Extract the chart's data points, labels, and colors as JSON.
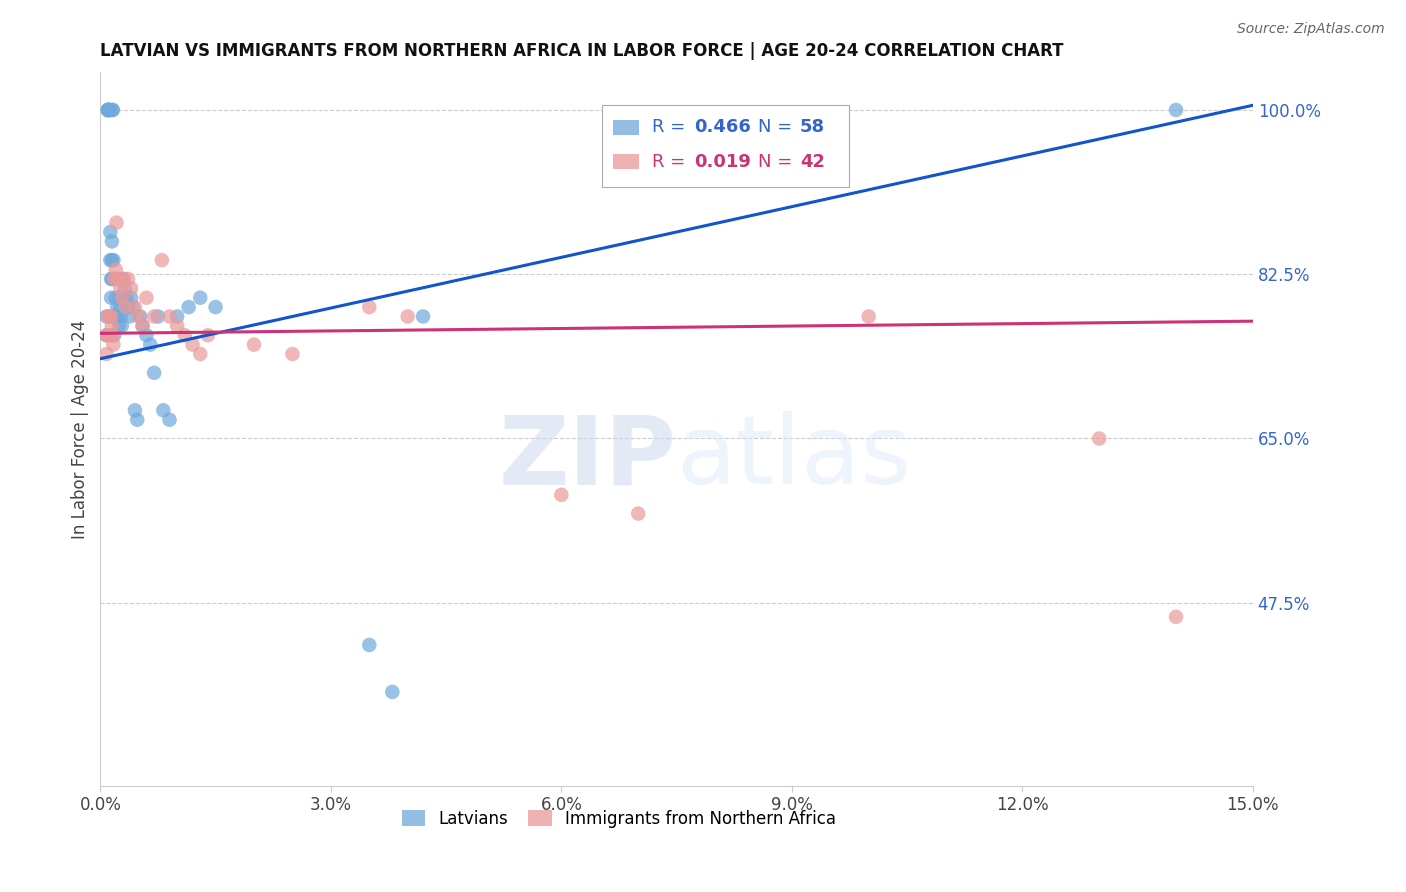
{
  "title": "LATVIAN VS IMMIGRANTS FROM NORTHERN AFRICA IN LABOR FORCE | AGE 20-24 CORRELATION CHART",
  "source": "Source: ZipAtlas.com",
  "ylabel": "In Labor Force | Age 20-24",
  "xlim": [
    0.0,
    0.15
  ],
  "ylim": [
    0.28,
    1.04
  ],
  "xticks": [
    0.0,
    0.03,
    0.06,
    0.09,
    0.12,
    0.15
  ],
  "xticklabels": [
    "0.0%",
    "3.0%",
    "6.0%",
    "9.0%",
    "12.0%",
    "15.0%"
  ],
  "yticks_right": [
    1.0,
    0.825,
    0.65,
    0.475
  ],
  "yticklabels_right": [
    "100.0%",
    "82.5%",
    "65.0%",
    "47.5%"
  ],
  "blue_R": 0.466,
  "blue_N": 58,
  "pink_R": 0.019,
  "pink_N": 42,
  "blue_color": "#6fa8dc",
  "pink_color": "#ea9999",
  "blue_line_color": "#1155cc",
  "pink_line_color": "#cc3377",
  "legend_label_blue": "Latvians",
  "legend_label_pink": "Immigrants from Northern Africa",
  "blue_line_x0": 0.0,
  "blue_line_y0": 0.735,
  "blue_line_x1": 0.15,
  "blue_line_y1": 1.005,
  "pink_line_x0": 0.0,
  "pink_line_y0": 0.762,
  "pink_line_x1": 0.15,
  "pink_line_y1": 0.775,
  "blue_x": [
    0.0008,
    0.0008,
    0.001,
    0.001,
    0.001,
    0.001,
    0.001,
    0.0012,
    0.0012,
    0.0013,
    0.0013,
    0.0014,
    0.0014,
    0.0015,
    0.0015,
    0.0015,
    0.0016,
    0.0016,
    0.0017,
    0.0017,
    0.0018,
    0.0018,
    0.0019,
    0.002,
    0.002,
    0.0021,
    0.0022,
    0.0023,
    0.0024,
    0.0025,
    0.0026,
    0.0027,
    0.0028,
    0.003,
    0.0032,
    0.0034,
    0.0036,
    0.0038,
    0.004,
    0.0042,
    0.0045,
    0.0048,
    0.0052,
    0.0055,
    0.006,
    0.0065,
    0.007,
    0.0075,
    0.0082,
    0.009,
    0.01,
    0.0115,
    0.013,
    0.015,
    0.035,
    0.038,
    0.042,
    0.14
  ],
  "blue_y": [
    0.78,
    0.76,
    1.0,
    1.0,
    1.0,
    1.0,
    1.0,
    1.0,
    1.0,
    0.87,
    0.84,
    0.82,
    0.8,
    0.86,
    0.84,
    0.82,
    1.0,
    1.0,
    0.84,
    0.82,
    0.78,
    0.76,
    0.78,
    0.8,
    0.78,
    0.78,
    0.79,
    0.78,
    0.77,
    0.8,
    0.79,
    0.78,
    0.77,
    0.82,
    0.81,
    0.8,
    0.79,
    0.78,
    0.8,
    0.79,
    0.68,
    0.67,
    0.78,
    0.77,
    0.76,
    0.75,
    0.72,
    0.78,
    0.68,
    0.67,
    0.78,
    0.79,
    0.8,
    0.79,
    0.43,
    0.38,
    0.78,
    1.0
  ],
  "pink_x": [
    0.0008,
    0.0008,
    0.001,
    0.001,
    0.0012,
    0.0012,
    0.0014,
    0.0015,
    0.0016,
    0.0017,
    0.0018,
    0.002,
    0.0021,
    0.0022,
    0.0024,
    0.0026,
    0.0028,
    0.003,
    0.0033,
    0.0036,
    0.004,
    0.0045,
    0.005,
    0.0055,
    0.006,
    0.007,
    0.008,
    0.009,
    0.01,
    0.011,
    0.012,
    0.013,
    0.014,
    0.02,
    0.025,
    0.035,
    0.04,
    0.06,
    0.07,
    0.1,
    0.13,
    0.14
  ],
  "pink_y": [
    0.76,
    0.74,
    0.78,
    0.76,
    0.78,
    0.76,
    0.78,
    0.77,
    0.76,
    0.75,
    0.82,
    0.83,
    0.88,
    0.82,
    0.82,
    0.81,
    0.8,
    0.82,
    0.79,
    0.82,
    0.81,
    0.79,
    0.78,
    0.77,
    0.8,
    0.78,
    0.84,
    0.78,
    0.77,
    0.76,
    0.75,
    0.74,
    0.76,
    0.75,
    0.74,
    0.79,
    0.78,
    0.59,
    0.57,
    0.78,
    0.65,
    0.46
  ]
}
